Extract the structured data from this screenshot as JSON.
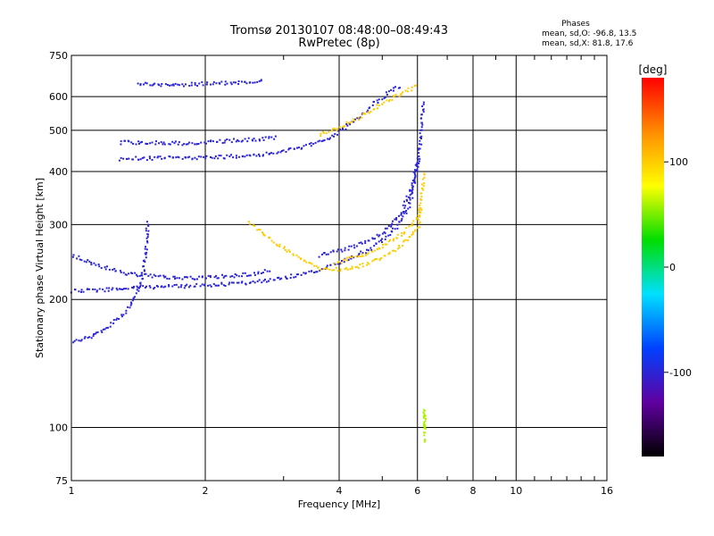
{
  "chart_data": {
    "type": "scatter",
    "title": "Tromsø 20130107 08:48:00–08:49:43",
    "subtitle": "RwPretec (8p)",
    "xlabel": "Frequency [MHz]",
    "ylabel": "Stationary phase Virtual Height [km]",
    "xscale": "log",
    "yscale": "log",
    "xlim": [
      1,
      16
    ],
    "ylim": [
      75,
      750
    ],
    "xticks": [
      1,
      2,
      4,
      6,
      8,
      10,
      16
    ],
    "yticks": [
      75,
      100,
      200,
      300,
      400,
      500,
      600,
      750
    ],
    "grid": true,
    "stats_title": "Phases",
    "stats": [
      "mean, sd,O: -96.8, 13.5",
      "mean, sd,X: 81.8, 17.6"
    ],
    "colorbar": {
      "label": "[deg]",
      "range": [
        -180,
        180
      ],
      "ticks": [
        100,
        0,
        -100
      ],
      "stops": [
        "#ff0000",
        "#ff8c00",
        "#ffff00",
        "#00dd00",
        "#00e0ff",
        "#0040ff",
        "#6000a0",
        "#000000"
      ]
    },
    "traces": [
      {
        "phase": -100,
        "points": [
          [
            1.0,
            210
          ],
          [
            1.2,
            212
          ],
          [
            1.5,
            215
          ],
          [
            1.8,
            216
          ],
          [
            2.2,
            218
          ],
          [
            2.6,
            221
          ],
          [
            3.0,
            226
          ],
          [
            3.4,
            232
          ],
          [
            3.8,
            240
          ],
          [
            4.2,
            250
          ],
          [
            4.6,
            262
          ],
          [
            5.0,
            278
          ],
          [
            5.4,
            300
          ],
          [
            5.7,
            330
          ],
          [
            5.9,
            380
          ],
          [
            6.0,
            430
          ]
        ]
      },
      {
        "phase": -100,
        "points": [
          [
            1.0,
            160
          ],
          [
            1.1,
            164
          ],
          [
            1.2,
            172
          ],
          [
            1.3,
            185
          ],
          [
            1.37,
            200
          ],
          [
            1.42,
            215
          ],
          [
            1.45,
            240
          ],
          [
            1.47,
            275
          ],
          [
            1.48,
            310
          ]
        ]
      },
      {
        "phase": -100,
        "points": [
          [
            1.0,
            255
          ],
          [
            1.1,
            245
          ],
          [
            1.2,
            238
          ],
          [
            1.3,
            232
          ],
          [
            1.5,
            228
          ],
          [
            1.8,
            225
          ],
          [
            2.1,
            227
          ],
          [
            2.5,
            230
          ],
          [
            2.8,
            235
          ]
        ]
      },
      {
        "phase": -100,
        "points": [
          [
            1.28,
            430
          ],
          [
            1.5,
            432
          ],
          [
            1.8,
            433
          ],
          [
            2.1,
            434
          ],
          [
            2.5,
            438
          ],
          [
            2.9,
            445
          ],
          [
            3.2,
            455
          ],
          [
            3.6,
            470
          ],
          [
            4.0,
            500
          ],
          [
            4.4,
            540
          ],
          [
            4.8,
            585
          ],
          [
            5.2,
            620
          ],
          [
            5.5,
            640
          ]
        ]
      },
      {
        "phase": -100,
        "points": [
          [
            1.28,
            470
          ],
          [
            1.5,
            470
          ],
          [
            1.8,
            468
          ],
          [
            2.1,
            472
          ],
          [
            2.5,
            478
          ],
          [
            2.9,
            482
          ]
        ]
      },
      {
        "phase": -100,
        "points": [
          [
            1.4,
            645
          ],
          [
            1.6,
            642
          ],
          [
            1.9,
            645
          ],
          [
            2.2,
            648
          ],
          [
            2.5,
            652
          ],
          [
            2.7,
            656
          ]
        ]
      },
      {
        "phase": -100,
        "points": [
          [
            3.6,
            255
          ],
          [
            4.0,
            262
          ],
          [
            4.5,
            272
          ],
          [
            5.0,
            288
          ],
          [
            5.5,
            320
          ],
          [
            5.8,
            370
          ],
          [
            6.0,
            430
          ],
          [
            6.1,
            500
          ],
          [
            6.15,
            590
          ]
        ]
      },
      {
        "phase": 100,
        "points": [
          [
            2.5,
            305
          ],
          [
            2.7,
            285
          ],
          [
            3.0,
            265
          ],
          [
            3.3,
            248
          ],
          [
            3.6,
            238
          ],
          [
            4.0,
            236
          ],
          [
            4.4,
            240
          ],
          [
            4.8,
            248
          ],
          [
            5.2,
            258
          ],
          [
            5.6,
            275
          ],
          [
            6.0,
            300
          ],
          [
            6.1,
            350
          ],
          [
            6.2,
            400
          ]
        ]
      },
      {
        "phase": 100,
        "points": [
          [
            3.6,
            490
          ],
          [
            4.0,
            510
          ],
          [
            4.5,
            545
          ],
          [
            5.0,
            580
          ],
          [
            5.5,
            615
          ],
          [
            6.0,
            640
          ]
        ]
      },
      {
        "phase": 100,
        "points": [
          [
            3.9,
            245
          ],
          [
            4.3,
            252
          ],
          [
            4.8,
            262
          ],
          [
            5.3,
            278
          ],
          [
            5.8,
            300
          ],
          [
            6.1,
            330
          ]
        ]
      },
      {
        "phase": 60,
        "points": [
          [
            6.2,
            100
          ],
          [
            6.2,
            110
          ],
          [
            6.2,
            93
          ]
        ]
      }
    ]
  }
}
